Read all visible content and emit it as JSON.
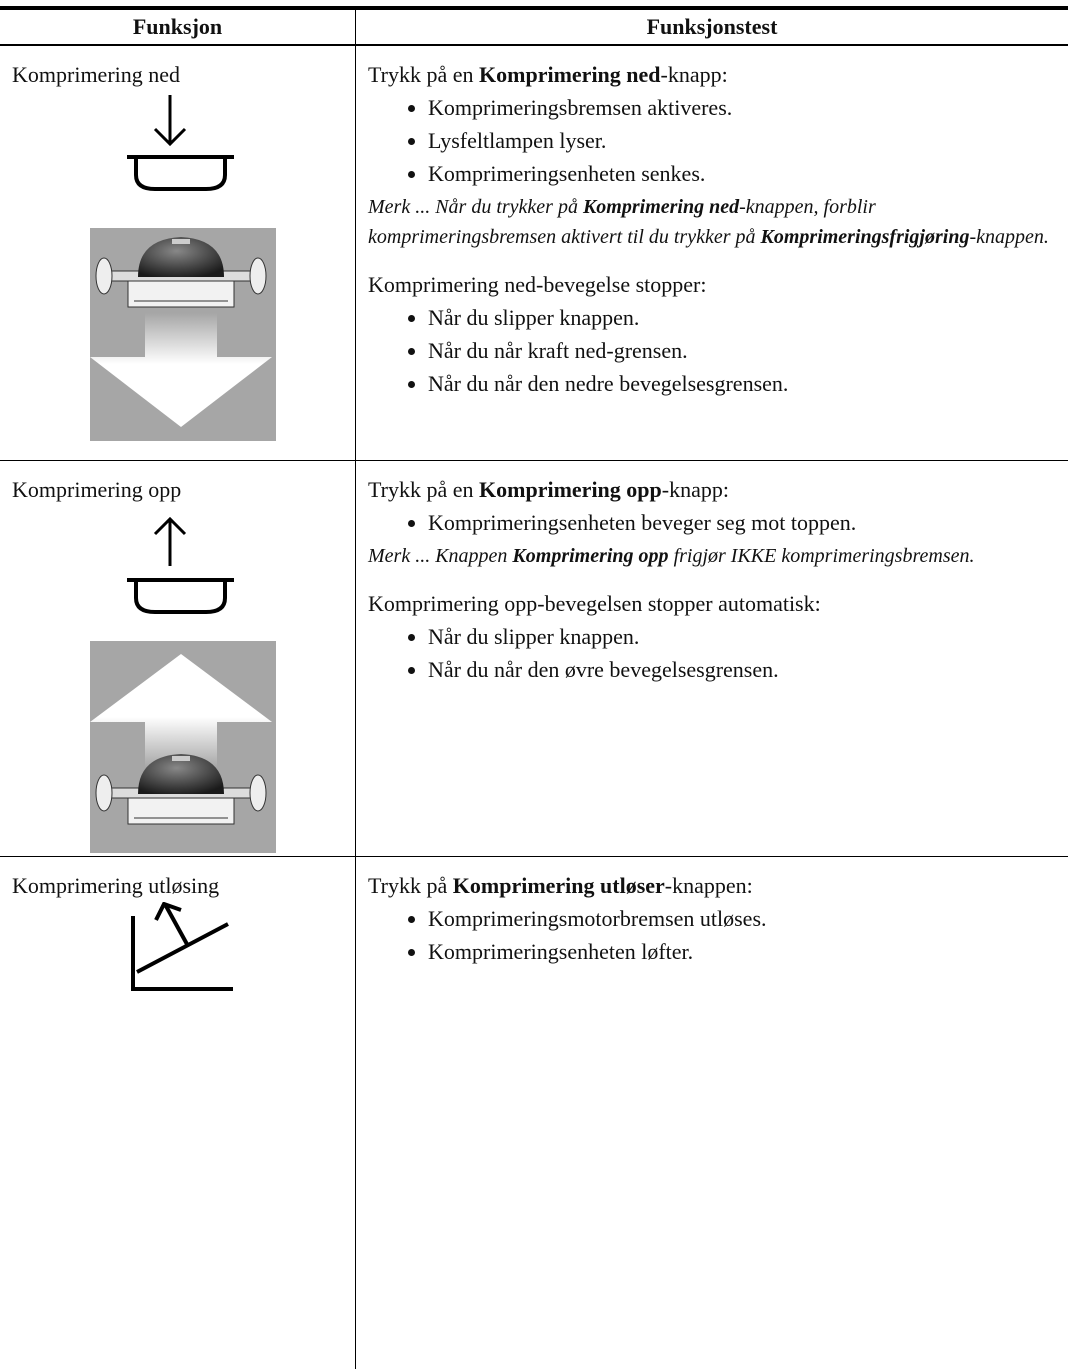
{
  "table": {
    "headers": [
      "Funksjon",
      "Funksjonstest"
    ],
    "rows": [
      {
        "function": "Komprimering ned",
        "test": [
          {
            "type": "p",
            "runs": [
              {
                "text": "Trykk på en ",
                "style": "n"
              },
              {
                "text": "Komprimering ned",
                "style": "b"
              },
              {
                "text": "-knapp:",
                "style": "n"
              }
            ]
          },
          {
            "type": "bullets",
            "items": [
              "Komprimeringsbremsen aktiveres.",
              "Lysfeltlampen lyser.",
              "Komprimeringsenheten senkes."
            ]
          },
          {
            "type": "note",
            "runs": [
              {
                "text": "Merk ... Når du trykker på ",
                "style": "n"
              },
              {
                "text": "Komprimering ned",
                "style": "bi"
              },
              {
                "text": "-knappen, forblir komprimeringsbremsen aktivert til du trykker på ",
                "style": "n"
              },
              {
                "text": "Komprimeringsfrigjøring",
                "style": "bi"
              },
              {
                "text": "-knappen.",
                "style": "n"
              }
            ]
          },
          {
            "type": "p",
            "runs": [
              {
                "text": "Komprimering ned-bevegelse stopper:",
                "style": "n"
              }
            ]
          },
          {
            "type": "bullets",
            "items": [
              "Når du slipper knappen.",
              "Når du når kraft ned-grensen.",
              "Når du når den nedre bevegelsesgrensen."
            ]
          }
        ]
      },
      {
        "function": "Komprimering opp",
        "test": [
          {
            "type": "p",
            "runs": [
              {
                "text": "Trykk på en ",
                "style": "n"
              },
              {
                "text": "Komprimering opp",
                "style": "b"
              },
              {
                "text": "-knapp:",
                "style": "n"
              }
            ]
          },
          {
            "type": "bullets",
            "items": [
              "Komprimeringsenheten beveger seg mot toppen."
            ]
          },
          {
            "type": "note",
            "runs": [
              {
                "text": "Merk ... Knappen ",
                "style": "n"
              },
              {
                "text": "Komprimering opp",
                "style": "bi"
              },
              {
                "text": " frigjør IKKE komprimeringsbremsen.",
                "style": "n"
              }
            ]
          },
          {
            "type": "p",
            "runs": [
              {
                "text": "Komprimering opp-bevegelsen stopper automatisk:",
                "style": "n"
              }
            ]
          },
          {
            "type": "bullets",
            "items": [
              "Når du slipper knappen.",
              "Når du når den øvre bevegelsesgrensen."
            ]
          }
        ]
      },
      {
        "function": "Komprimering utløsing",
        "test": [
          {
            "type": "p",
            "runs": [
              {
                "text": "Trykk på ",
                "style": "n"
              },
              {
                "text": "Komprimering utløser",
                "style": "b"
              },
              {
                "text": "-knappen:",
                "style": "n"
              }
            ]
          },
          {
            "type": "bullets",
            "items": [
              "Komprimeringsmotorbremsen utløses.",
              "Komprimeringsenheten løfter."
            ]
          }
        ]
      }
    ]
  }
}
